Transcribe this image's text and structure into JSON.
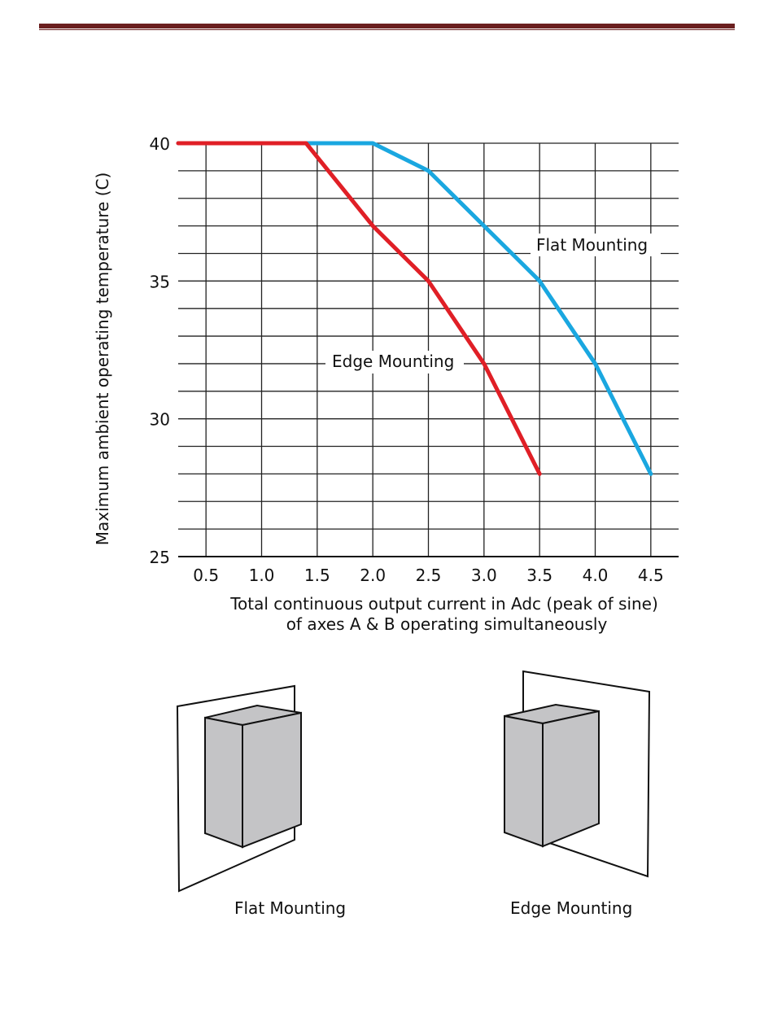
{
  "chart_data": {
    "type": "line",
    "title": "",
    "xlabel_line1": "Total continuous output current in Adc (peak of sine)",
    "xlabel_line2": "of axes A & B operating simultaneously",
    "ylabel": "Maximum ambient operating temperature (C)",
    "xlim": [
      0.25,
      4.75
    ],
    "ylim": [
      25,
      40
    ],
    "x_ticks": [
      "0.5",
      "1.0",
      "1.5",
      "2.0",
      "2.5",
      "3.0",
      "3.5",
      "4.0",
      "4.5"
    ],
    "y_ticks": [
      "25",
      "30",
      "35",
      "40"
    ],
    "grid": true,
    "series": [
      {
        "name": "Flat Mounting",
        "color": "#1aa7e0",
        "x": [
          0.25,
          2.0,
          2.5,
          3.0,
          3.5,
          4.0,
          4.5
        ],
        "y": [
          40,
          40,
          39,
          37,
          35,
          32,
          28
        ]
      },
      {
        "name": "Edge Mounting",
        "color": "#e01f26",
        "x": [
          0.25,
          1.4,
          2.0,
          2.5,
          3.0,
          3.5
        ],
        "y": [
          40,
          40,
          37,
          35,
          32,
          28
        ]
      }
    ]
  },
  "illustrations": {
    "flat_caption": "Flat Mounting",
    "edge_caption": "Edge Mounting"
  }
}
